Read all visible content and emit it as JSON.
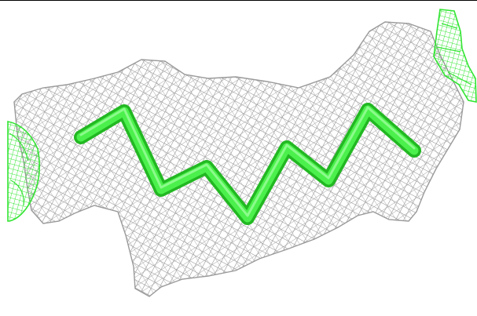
{
  "viewer": {
    "background": "#ffffff",
    "border_top_color": "#000000"
  },
  "scene": {
    "mesh_color": "#8c8c8c",
    "mesh_highlight_color": "#c8c8c8",
    "stick_color": "#33e533",
    "stick_shade_color": "#22b822",
    "side_mesh_color": "#33e533"
  }
}
